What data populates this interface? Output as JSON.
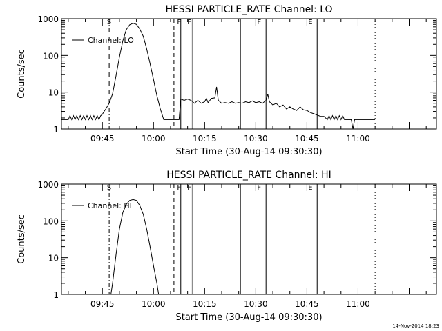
{
  "footer": {
    "timestamp": "14-Nov-2014 18:23"
  },
  "chart_data": [
    {
      "type": "line",
      "title": "HESSI PARTICLE_RATE Channel: LO",
      "xlabel": "Start Time (30-Aug-14 09:30:30)",
      "ylabel": "Counts/sec",
      "yscale": "log",
      "ylim": [
        1,
        1000
      ],
      "xlim": [
        "09:33:00",
        "11:23:00"
      ],
      "xticks": [
        "09:45",
        "10:00",
        "10:15",
        "10:30",
        "10:45",
        "11:00"
      ],
      "yticks": [
        "1",
        "10",
        "100",
        "1000"
      ],
      "legend": {
        "label": "Channel: LO",
        "placement": "top-left"
      },
      "flag_labels": [
        {
          "text": "S",
          "time": "09:47:00"
        },
        {
          "text": "F",
          "time": "10:07:30"
        },
        {
          "text": "F",
          "time": "10:10:30"
        },
        {
          "text": "F",
          "time": "10:31:00"
        },
        {
          "text": "E",
          "time": "10:46:00"
        }
      ],
      "markers": [
        {
          "time": "09:47:00",
          "style": "dash-dot"
        },
        {
          "time": "10:06:00",
          "style": "dashed"
        },
        {
          "time": "10:08:00",
          "style": "solid"
        },
        {
          "time": "10:11:00",
          "style": "solid"
        },
        {
          "time": "10:11:30",
          "style": "solid"
        },
        {
          "time": "10:25:30",
          "style": "solid"
        },
        {
          "time": "10:33:00",
          "style": "solid"
        },
        {
          "time": "10:48:00",
          "style": "solid"
        },
        {
          "time": "11:05:00",
          "style": "dotted"
        }
      ],
      "series": [
        {
          "values": [
            [
              "09:33:00",
              1.8
            ],
            [
              "09:34:00",
              1.8
            ],
            [
              "09:35:00",
              1.8
            ],
            [
              "09:35:30",
              2.3
            ],
            [
              "09:36:00",
              1.8
            ],
            [
              "09:36:30",
              2.3
            ],
            [
              "09:37:00",
              1.8
            ],
            [
              "09:37:30",
              2.3
            ],
            [
              "09:38:00",
              1.8
            ],
            [
              "09:38:30",
              2.3
            ],
            [
              "09:39:00",
              1.8
            ],
            [
              "09:39:30",
              2.3
            ],
            [
              "09:40:00",
              1.8
            ],
            [
              "09:40:30",
              2.3
            ],
            [
              "09:41:00",
              1.8
            ],
            [
              "09:41:30",
              2.3
            ],
            [
              "09:42:00",
              1.8
            ],
            [
              "09:42:30",
              2.3
            ],
            [
              "09:43:00",
              1.8
            ],
            [
              "09:43:30",
              2.3
            ],
            [
              "09:44:00",
              1.8
            ],
            [
              "09:44:30",
              2.3
            ],
            [
              "09:45:00",
              2.5
            ],
            [
              "09:45:30",
              3
            ],
            [
              "09:46:00",
              3.5
            ],
            [
              "09:47:00",
              5
            ],
            [
              "09:48:00",
              9
            ],
            [
              "09:49:00",
              28
            ],
            [
              "09:50:00",
              90
            ],
            [
              "09:51:00",
              250
            ],
            [
              "09:52:00",
              500
            ],
            [
              "09:53:00",
              680
            ],
            [
              "09:54:00",
              750
            ],
            [
              "09:55:00",
              700
            ],
            [
              "09:56:00",
              520
            ],
            [
              "09:57:00",
              330
            ],
            [
              "09:58:00",
              150
            ],
            [
              "09:59:00",
              60
            ],
            [
              "10:00:00",
              22
            ],
            [
              "10:01:00",
              8
            ],
            [
              "10:02:00",
              3.5
            ],
            [
              "10:03:00",
              1.8
            ],
            [
              "10:07:30",
              1.8
            ],
            [
              "10:08:00",
              6.5
            ],
            [
              "10:09:00",
              6
            ],
            [
              "10:10:00",
              6.5
            ],
            [
              "10:11:00",
              6
            ],
            [
              "10:12:00",
              5
            ],
            [
              "10:13:00",
              6
            ],
            [
              "10:14:00",
              5
            ],
            [
              "10:15:00",
              5.5
            ],
            [
              "10:15:30",
              6.8
            ],
            [
              "10:16:00",
              5.2
            ],
            [
              "10:17:00",
              6.8
            ],
            [
              "10:18:00",
              7
            ],
            [
              "10:18:30",
              14
            ],
            [
              "10:19:00",
              6
            ],
            [
              "10:20:00",
              5
            ],
            [
              "10:21:00",
              5.2
            ],
            [
              "10:22:00",
              5
            ],
            [
              "10:23:00",
              5.5
            ],
            [
              "10:24:00",
              5
            ],
            [
              "10:25:00",
              5.2
            ],
            [
              "10:26:00",
              5
            ],
            [
              "10:27:00",
              5.5
            ],
            [
              "10:28:00",
              5.2
            ],
            [
              "10:29:00",
              5.8
            ],
            [
              "10:30:00",
              5.2
            ],
            [
              "10:31:00",
              5.5
            ],
            [
              "10:32:00",
              5
            ],
            [
              "10:33:00",
              6
            ],
            [
              "10:33:30",
              9
            ],
            [
              "10:34:00",
              5.5
            ],
            [
              "10:35:00",
              4.5
            ],
            [
              "10:36:00",
              5
            ],
            [
              "10:37:00",
              4
            ],
            [
              "10:38:00",
              4.5
            ],
            [
              "10:39:00",
              3.5
            ],
            [
              "10:40:00",
              4
            ],
            [
              "10:41:00",
              3.5
            ],
            [
              "10:42:00",
              3.2
            ],
            [
              "10:43:00",
              4
            ],
            [
              "10:44:00",
              3.3
            ],
            [
              "10:45:00",
              3.2
            ],
            [
              "10:46:00",
              2.8
            ],
            [
              "10:47:00",
              2.6
            ],
            [
              "10:48:00",
              2.4
            ],
            [
              "10:49:00",
              2.2
            ],
            [
              "10:50:00",
              2.2
            ],
            [
              "10:51:00",
              1.8
            ],
            [
              "10:51:30",
              2.3
            ],
            [
              "10:52:00",
              1.8
            ],
            [
              "10:52:30",
              2.3
            ],
            [
              "10:53:00",
              1.8
            ],
            [
              "10:53:30",
              2.3
            ],
            [
              "10:54:00",
              1.8
            ],
            [
              "10:54:30",
              2.3
            ],
            [
              "10:55:00",
              1.8
            ],
            [
              "10:55:30",
              2.3
            ],
            [
              "10:56:00",
              1.8
            ],
            [
              "10:57:00",
              1.8
            ],
            [
              "10:58:00",
              1.8
            ],
            [
              "10:58:30",
              1
            ],
            [
              "10:59:00",
              1.8
            ],
            [
              "11:05:00",
              1.8
            ]
          ]
        }
      ]
    },
    {
      "type": "line",
      "title": "HESSI PARTICLE_RATE Channel: HI",
      "xlabel": "Start Time (30-Aug-14 09:30:30)",
      "ylabel": "Counts/sec",
      "yscale": "log",
      "ylim": [
        1,
        1000
      ],
      "xlim": [
        "09:33:00",
        "11:23:00"
      ],
      "xticks": [
        "09:45",
        "10:00",
        "10:15",
        "10:30",
        "10:45",
        "11:00"
      ],
      "yticks": [
        "1",
        "10",
        "100",
        "1000"
      ],
      "legend": {
        "label": "Channel: HI",
        "placement": "top-left"
      },
      "flag_labels": [
        {
          "text": "S",
          "time": "09:47:00"
        },
        {
          "text": "F",
          "time": "10:07:30"
        },
        {
          "text": "F",
          "time": "10:10:30"
        },
        {
          "text": "F",
          "time": "10:31:00"
        },
        {
          "text": "E",
          "time": "10:46:00"
        }
      ],
      "markers": [
        {
          "time": "09:47:00",
          "style": "dash-dot"
        },
        {
          "time": "10:06:00",
          "style": "dashed"
        },
        {
          "time": "10:08:00",
          "style": "solid"
        },
        {
          "time": "10:11:00",
          "style": "solid"
        },
        {
          "time": "10:11:30",
          "style": "solid"
        },
        {
          "time": "10:25:30",
          "style": "solid"
        },
        {
          "time": "10:33:00",
          "style": "solid"
        },
        {
          "time": "10:48:00",
          "style": "solid"
        },
        {
          "time": "11:05:00",
          "style": "dotted"
        }
      ],
      "series": [
        {
          "values": [
            [
              "09:47:30",
              1
            ],
            [
              "09:48:00",
              2
            ],
            [
              "09:49:00",
              12
            ],
            [
              "09:50:00",
              60
            ],
            [
              "09:51:00",
              170
            ],
            [
              "09:52:00",
              280
            ],
            [
              "09:53:00",
              360
            ],
            [
              "09:54:00",
              380
            ],
            [
              "09:55:00",
              360
            ],
            [
              "09:56:00",
              260
            ],
            [
              "09:57:00",
              150
            ],
            [
              "09:58:00",
              60
            ],
            [
              "09:59:00",
              20
            ],
            [
              "10:00:00",
              6
            ],
            [
              "10:01:00",
              2
            ],
            [
              "10:01:30",
              1
            ]
          ]
        }
      ]
    }
  ]
}
